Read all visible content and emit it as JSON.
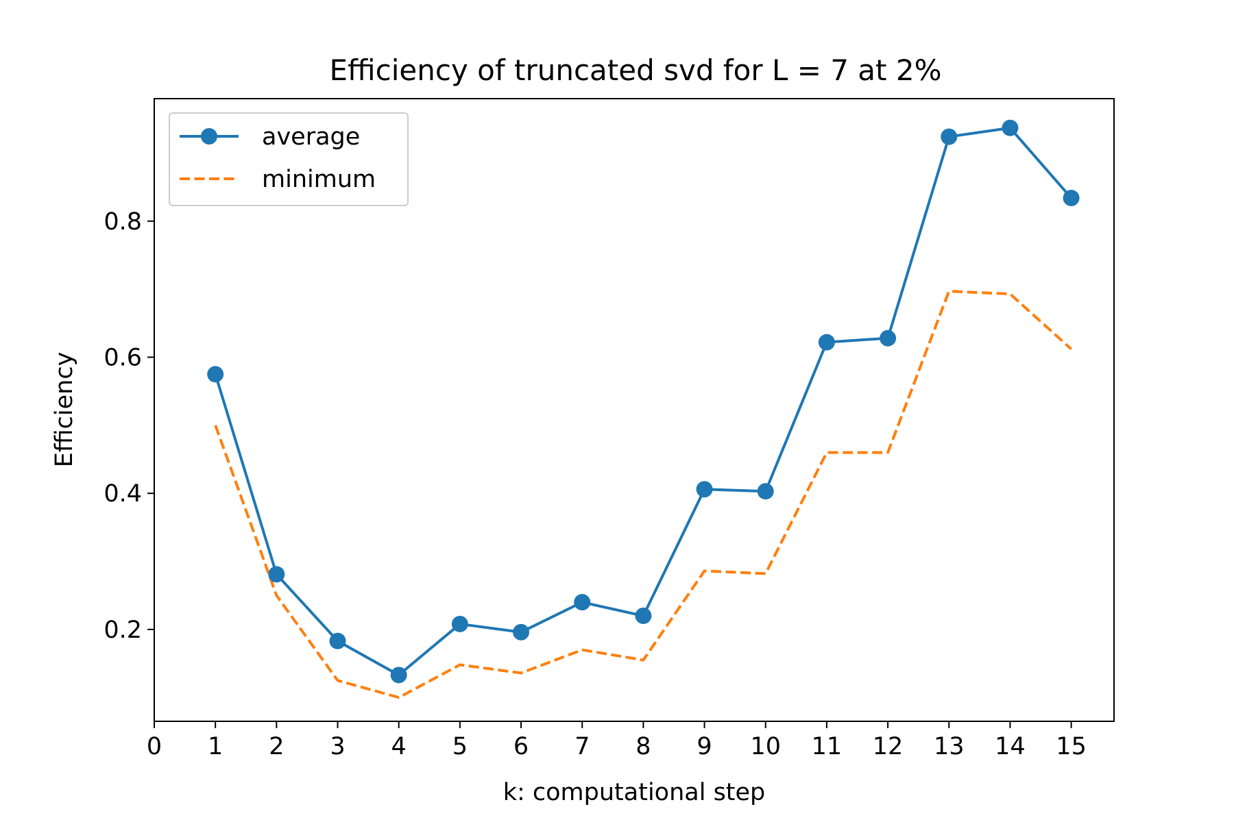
{
  "colors": {
    "average": "#1f77b4",
    "minimum": "#ff7f0e",
    "axis": "#000000",
    "background": "#ffffff"
  },
  "chart_data": {
    "type": "line",
    "title": "Efficiency of truncated svd for L = 7 at 2%",
    "xlabel": "k: computational step",
    "ylabel": "Efficiency",
    "xlim": [
      0,
      15.7
    ],
    "ylim": [
      0.065,
      0.98
    ],
    "grid": false,
    "legend_position": "top-left",
    "x_ticks": [
      0,
      1,
      2,
      3,
      4,
      5,
      6,
      7,
      8,
      9,
      10,
      11,
      12,
      13,
      14,
      15
    ],
    "x_tick_labels": [
      "0",
      "1",
      "2",
      "3",
      "4",
      "5",
      "6",
      "7",
      "8",
      "9",
      "10",
      "11",
      "12",
      "13",
      "14",
      "15"
    ],
    "y_ticks": [
      0.2,
      0.4,
      0.6,
      0.8
    ],
    "y_tick_labels": [
      "0.2",
      "0.4",
      "0.6",
      "0.8"
    ],
    "x": [
      1,
      2,
      3,
      4,
      5,
      6,
      7,
      8,
      9,
      10,
      11,
      12,
      13,
      14,
      15
    ],
    "series": [
      {
        "name": "average",
        "style": "solid-with-markers",
        "values": [
          0.575,
          0.281,
          0.183,
          0.133,
          0.208,
          0.196,
          0.24,
          0.22,
          0.406,
          0.403,
          0.622,
          0.628,
          0.924,
          0.937,
          0.834
        ]
      },
      {
        "name": "minimum",
        "style": "dashed",
        "values": [
          0.5,
          0.25,
          0.125,
          0.1,
          0.148,
          0.136,
          0.17,
          0.155,
          0.286,
          0.282,
          0.46,
          0.46,
          0.697,
          0.693,
          0.612
        ]
      }
    ]
  }
}
